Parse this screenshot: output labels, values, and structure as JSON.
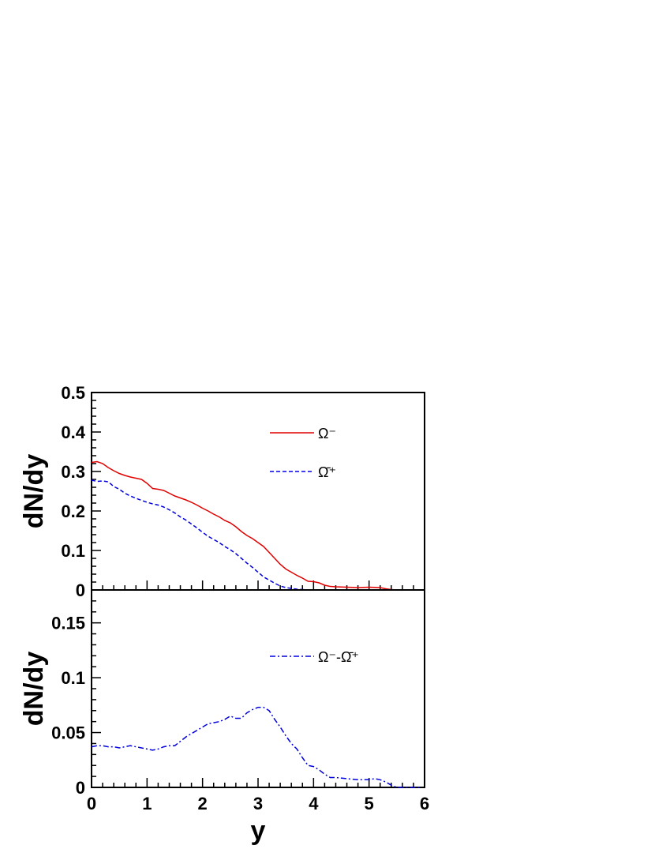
{
  "chart_data": [
    {
      "type": "line",
      "title": "",
      "xlabel": "y",
      "ylabel": "dN/dy",
      "xlim": [
        0,
        6
      ],
      "ylim": [
        0,
        0.5
      ],
      "x_ticks": [
        "0",
        "1",
        "2",
        "3",
        "4",
        "5",
        "6"
      ],
      "y_ticks": [
        "0",
        "0.1",
        "0.2",
        "0.3",
        "0.4",
        "0.5"
      ],
      "legend_position": "top-right",
      "series": [
        {
          "name": "Ω⁻",
          "color": "#e00000",
          "style": "solid",
          "x": [
            0.0,
            0.1,
            0.2,
            0.3,
            0.4,
            0.5,
            0.6,
            0.7,
            0.8,
            0.9,
            1.0,
            1.1,
            1.2,
            1.3,
            1.4,
            1.5,
            1.6,
            1.7,
            1.8,
            1.9,
            2.0,
            2.1,
            2.2,
            2.3,
            2.4,
            2.5,
            2.6,
            2.7,
            2.8,
            2.9,
            3.0,
            3.1,
            3.2,
            3.3,
            3.4,
            3.5,
            3.6,
            3.7,
            3.8,
            3.9,
            4.0,
            4.1,
            4.2,
            4.3,
            4.4,
            4.6,
            4.8,
            5.0,
            5.2,
            5.3,
            5.4,
            5.5
          ],
          "y": [
            0.323,
            0.325,
            0.32,
            0.31,
            0.302,
            0.295,
            0.29,
            0.286,
            0.283,
            0.28,
            0.27,
            0.257,
            0.255,
            0.252,
            0.245,
            0.238,
            0.233,
            0.228,
            0.222,
            0.215,
            0.207,
            0.2,
            0.192,
            0.185,
            0.176,
            0.17,
            0.16,
            0.148,
            0.138,
            0.13,
            0.12,
            0.11,
            0.095,
            0.08,
            0.065,
            0.053,
            0.045,
            0.037,
            0.03,
            0.022,
            0.021,
            0.018,
            0.012,
            0.009,
            0.008,
            0.007,
            0.006,
            0.007,
            0.006,
            0.003,
            0.001,
            0.0
          ]
        },
        {
          "name": "Ω̄⁺",
          "color": "#0000dd",
          "style": "dashed",
          "x": [
            0.0,
            0.1,
            0.2,
            0.3,
            0.4,
            0.5,
            0.6,
            0.7,
            0.8,
            0.9,
            1.0,
            1.1,
            1.2,
            1.3,
            1.4,
            1.5,
            1.6,
            1.7,
            1.8,
            1.9,
            2.0,
            2.1,
            2.2,
            2.3,
            2.4,
            2.5,
            2.6,
            2.7,
            2.8,
            2.9,
            3.0,
            3.1,
            3.2,
            3.3,
            3.4,
            3.5,
            3.6,
            3.7,
            3.8,
            3.9,
            4.0
          ],
          "y": [
            0.278,
            0.275,
            0.276,
            0.274,
            0.262,
            0.255,
            0.245,
            0.238,
            0.232,
            0.227,
            0.222,
            0.218,
            0.215,
            0.21,
            0.203,
            0.195,
            0.185,
            0.177,
            0.167,
            0.157,
            0.146,
            0.136,
            0.128,
            0.12,
            0.11,
            0.102,
            0.092,
            0.08,
            0.068,
            0.057,
            0.045,
            0.033,
            0.025,
            0.017,
            0.01,
            0.006,
            0.004,
            0.002,
            0.001,
            0.0,
            0.0
          ]
        }
      ]
    },
    {
      "type": "line",
      "title": "",
      "xlabel": "y",
      "ylabel": "dN/dy",
      "xlim": [
        0,
        6
      ],
      "ylim": [
        0,
        0.18
      ],
      "x_ticks": [
        "0",
        "1",
        "2",
        "3",
        "4",
        "5",
        "6"
      ],
      "y_ticks": [
        "0",
        "0.05",
        "0.1",
        "0.15"
      ],
      "legend_position": "top-right",
      "series": [
        {
          "name": "Ω⁻-Ω̄⁺",
          "color": "#0000dd",
          "style": "dashdot",
          "x": [
            0.0,
            0.1,
            0.2,
            0.3,
            0.4,
            0.5,
            0.6,
            0.7,
            0.8,
            0.9,
            1.0,
            1.1,
            1.2,
            1.3,
            1.4,
            1.5,
            1.6,
            1.7,
            1.8,
            1.9,
            2.0,
            2.1,
            2.2,
            2.3,
            2.4,
            2.5,
            2.6,
            2.7,
            2.8,
            2.9,
            3.0,
            3.1,
            3.2,
            3.3,
            3.4,
            3.5,
            3.6,
            3.7,
            3.8,
            3.9,
            4.0,
            4.1,
            4.2,
            4.3,
            4.4,
            4.6,
            4.8,
            5.0,
            5.1,
            5.2,
            5.3,
            5.4,
            5.5,
            5.6,
            5.8,
            5.9
          ],
          "y": [
            0.037,
            0.038,
            0.038,
            0.037,
            0.037,
            0.036,
            0.037,
            0.038,
            0.037,
            0.036,
            0.035,
            0.034,
            0.035,
            0.037,
            0.038,
            0.038,
            0.042,
            0.046,
            0.049,
            0.052,
            0.055,
            0.058,
            0.059,
            0.06,
            0.062,
            0.065,
            0.063,
            0.063,
            0.068,
            0.071,
            0.073,
            0.073,
            0.07,
            0.062,
            0.055,
            0.047,
            0.04,
            0.035,
            0.027,
            0.02,
            0.019,
            0.016,
            0.012,
            0.009,
            0.009,
            0.008,
            0.007,
            0.007,
            0.008,
            0.007,
            0.005,
            0.002,
            0.0,
            0.0,
            0.0,
            0.0
          ]
        }
      ]
    }
  ]
}
